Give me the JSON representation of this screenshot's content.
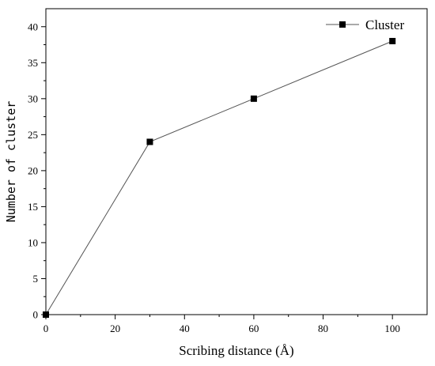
{
  "chart_data": {
    "type": "line",
    "xlabel": "Scribing distance (Å)",
    "ylabel": "Number of cluster",
    "xlim": [
      0,
      110
    ],
    "ylim": [
      0,
      42.5
    ],
    "xticks": [
      0,
      20,
      40,
      60,
      80,
      100
    ],
    "yticks": [
      0,
      5,
      10,
      15,
      20,
      25,
      30,
      35,
      40
    ],
    "grid": false,
    "legend_position": "top-right",
    "series": [
      {
        "name": "Cluster",
        "marker": "square",
        "color": "#000000",
        "x": [
          0,
          30,
          60,
          100
        ],
        "y": [
          0,
          24,
          30,
          38
        ]
      }
    ]
  }
}
